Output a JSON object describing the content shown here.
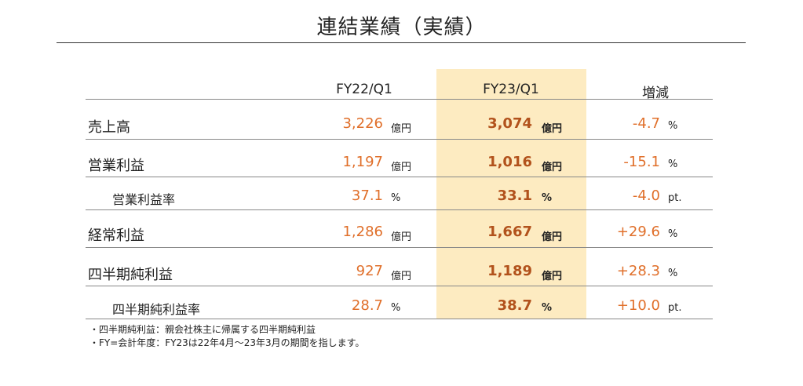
{
  "title": "連結業績（実績）",
  "columns": {
    "fy22": "FY22/Q1",
    "fy23": "FY23/Q1",
    "change": "増減"
  },
  "rows": [
    {
      "label": "売上高",
      "fy22": "3,226",
      "fy22_unit": "億円",
      "fy23": "3,074",
      "fy23_unit": "億円",
      "change": "-4.7",
      "change_unit": "%"
    },
    {
      "label": "営業利益",
      "fy22": "1,197",
      "fy22_unit": "億円",
      "fy23": "1,016",
      "fy23_unit": "億円",
      "change": "-15.1",
      "change_unit": "%"
    },
    {
      "label": "営業利益率",
      "fy22": "37.1",
      "fy22_unit": "%",
      "fy23": "33.1",
      "fy23_unit": "%",
      "change": "-4.0",
      "change_unit": "pt."
    },
    {
      "label": "経常利益",
      "fy22": "1,286",
      "fy22_unit": "億円",
      "fy23": "1,667",
      "fy23_unit": "億円",
      "change": "+29.6",
      "change_unit": "%"
    },
    {
      "label": "四半期純利益",
      "fy22": "927",
      "fy22_unit": "億円",
      "fy23": "1,189",
      "fy23_unit": "億円",
      "change": "+28.3",
      "change_unit": "%"
    },
    {
      "label": "四半期純利益率",
      "fy22": "28.7",
      "fy22_unit": "%",
      "fy23": "38.7",
      "fy23_unit": "%",
      "change": "+10.0",
      "change_unit": "pt."
    }
  ],
  "notes": [
    "・四半期純利益：親会社株主に帰属する四半期純利益",
    "・FY=会計年度：FY23は22年4月～23年3月の期間を指します。"
  ],
  "colors": {
    "highlight": "#fdebc1",
    "value": "#e06f2a",
    "value_bold": "#b2521c"
  }
}
